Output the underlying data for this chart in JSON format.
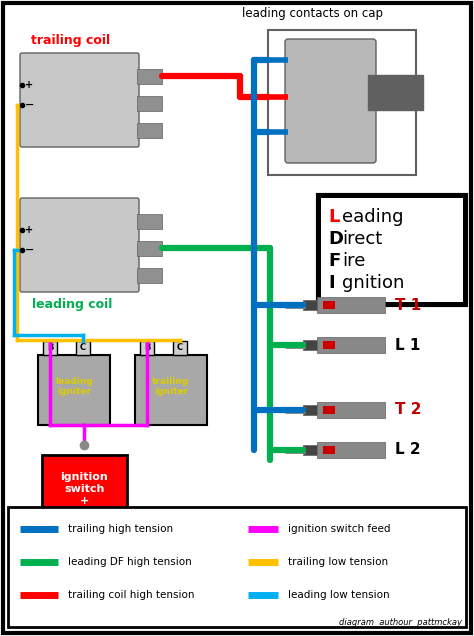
{
  "bg_color": "#ffffff",
  "colors": {
    "blue": "#0070c0",
    "green": "#00b050",
    "red": "#ff0000",
    "magenta": "#ff00ff",
    "yellow": "#ffc000",
    "cyan": "#00b0f0",
    "dark_red": "#c00000",
    "dark_gray": "#606060",
    "light_gray": "#c8c8c8",
    "mid_gray": "#909090",
    "black": "#000000",
    "white": "#ffffff"
  },
  "legend_items_left": [
    {
      "color": "#0070c0",
      "label": "trailing high tension"
    },
    {
      "color": "#00b050",
      "label": "leading DF high tension"
    },
    {
      "color": "#ff0000",
      "label": "trailing coil high tension"
    }
  ],
  "legend_items_right": [
    {
      "color": "#ff00ff",
      "label": "ignition switch feed"
    },
    {
      "color": "#ffc000",
      "label": "trailing low tension"
    },
    {
      "color": "#00b0f0",
      "label": "leading low tension"
    }
  ],
  "labels": {
    "trailing_coil": "trailing coil",
    "leading_coil": "leading coil",
    "leading_contacts": "leading contacts on cap",
    "T1": "T 1",
    "L1": "L 1",
    "T2": "T 2",
    "L2": "L 2",
    "author": "diagram  authour  pattmckay"
  }
}
